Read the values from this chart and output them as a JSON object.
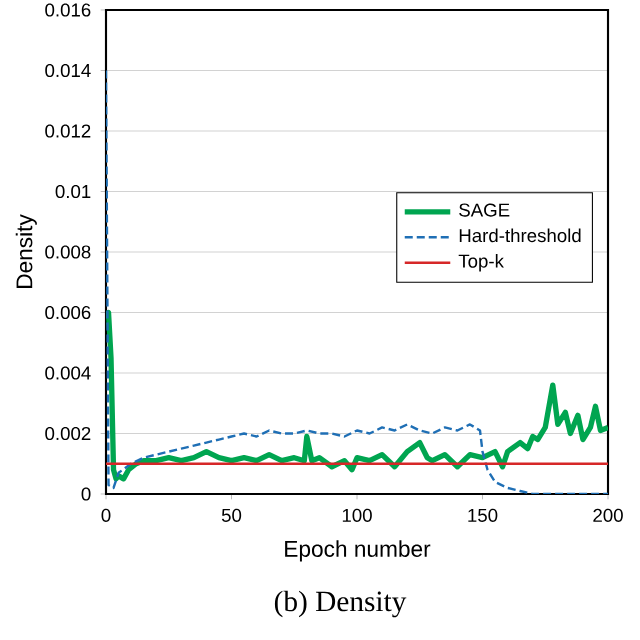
{
  "chart_data": {
    "type": "line",
    "xlabel": "Epoch number",
    "ylabel": "Density",
    "annotations": [
      "(b) Density"
    ],
    "xlim": [
      0,
      200
    ],
    "xticks": [
      0,
      50,
      100,
      150,
      200
    ],
    "ylim": [
      0,
      0.016
    ],
    "yticks": [
      0,
      0.002,
      0.004,
      0.006,
      0.008,
      0.01,
      0.012,
      0.014,
      0.016
    ],
    "grid": "y",
    "legend": "right",
    "series": [
      {
        "name": "SAGE",
        "color": "#00a550",
        "line_style": "solid",
        "x": [
          0,
          1,
          2,
          3,
          4,
          5,
          7,
          9,
          12,
          15,
          20,
          25,
          30,
          35,
          40,
          45,
          50,
          55,
          60,
          65,
          70,
          75,
          79,
          80,
          82,
          85,
          90,
          95,
          98,
          100,
          105,
          110,
          115,
          120,
          125,
          128,
          130,
          135,
          140,
          145,
          150,
          155,
          158,
          160,
          165,
          168,
          170,
          172,
          175,
          178,
          180,
          183,
          185,
          188,
          190,
          193,
          195,
          197,
          200
        ],
        "values": [
          0.0058,
          0.006,
          0.0045,
          0.0008,
          0.0005,
          0.0006,
          0.0005,
          0.0008,
          0.001,
          0.0011,
          0.0011,
          0.0012,
          0.0011,
          0.0012,
          0.0014,
          0.0012,
          0.0011,
          0.0012,
          0.0011,
          0.0013,
          0.0011,
          0.0012,
          0.0011,
          0.0019,
          0.0011,
          0.0012,
          0.0009,
          0.0011,
          0.0008,
          0.0012,
          0.0011,
          0.0013,
          0.0009,
          0.0014,
          0.0017,
          0.0012,
          0.0011,
          0.0013,
          0.0009,
          0.0013,
          0.0012,
          0.0014,
          0.0009,
          0.0014,
          0.0017,
          0.0015,
          0.0019,
          0.0018,
          0.0022,
          0.0036,
          0.0023,
          0.0027,
          0.002,
          0.0026,
          0.0018,
          0.0022,
          0.0029,
          0.0021,
          0.0022
        ]
      },
      {
        "name": "Hard-threshold",
        "color": "#1f6fb5",
        "line_style": "dashed",
        "x": [
          0,
          1,
          3,
          5,
          10,
          15,
          20,
          25,
          30,
          35,
          40,
          45,
          50,
          55,
          60,
          65,
          70,
          75,
          80,
          85,
          90,
          95,
          100,
          105,
          110,
          115,
          120,
          125,
          130,
          135,
          140,
          145,
          149,
          150,
          152,
          155,
          160,
          165,
          170,
          180,
          190,
          200
        ],
        "values": [
          0.014,
          0.0003,
          0.0002,
          0.0007,
          0.001,
          0.0012,
          0.0013,
          0.0014,
          0.0015,
          0.0016,
          0.0017,
          0.0018,
          0.0019,
          0.002,
          0.0019,
          0.0021,
          0.002,
          0.002,
          0.0021,
          0.002,
          0.002,
          0.0019,
          0.0021,
          0.002,
          0.0022,
          0.0021,
          0.0023,
          0.0021,
          0.002,
          0.0022,
          0.0021,
          0.0023,
          0.0021,
          0.0014,
          0.0008,
          0.0004,
          0.0002,
          0.0001,
          0,
          0,
          0,
          0
        ]
      },
      {
        "name": "Top-k",
        "color": "#d62728",
        "line_style": "solid",
        "x": [
          0,
          200
        ],
        "values": [
          0.001,
          0.001
        ]
      }
    ]
  }
}
